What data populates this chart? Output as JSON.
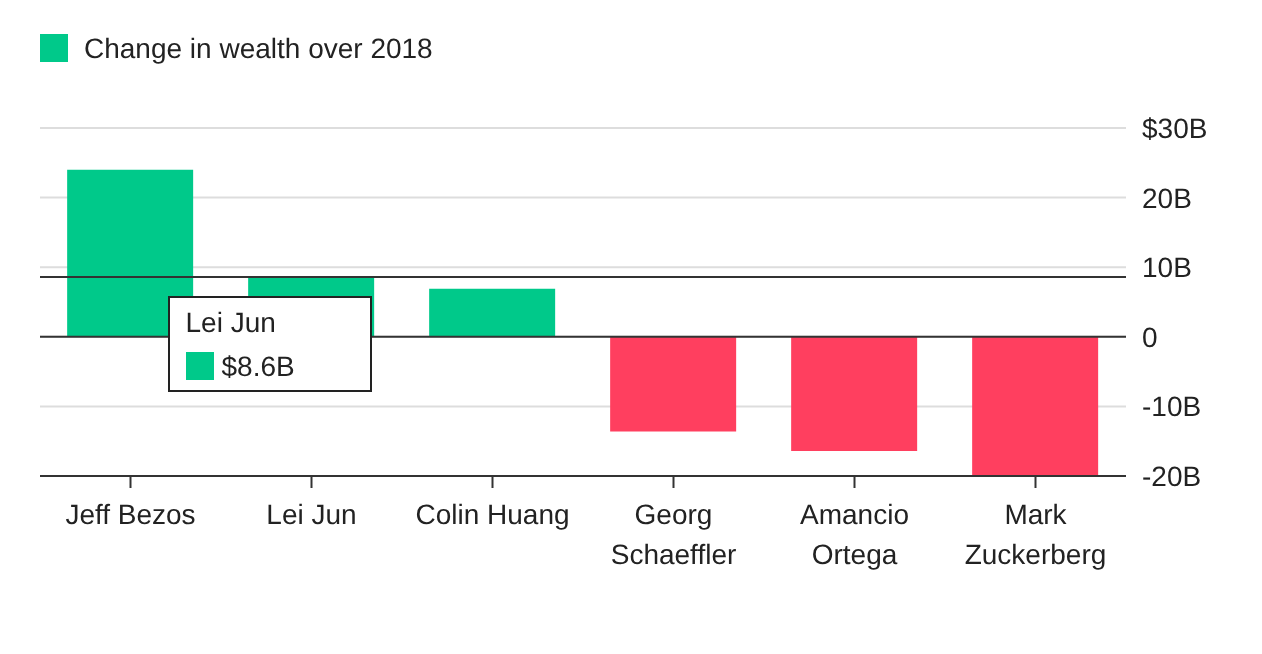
{
  "chart_data": {
    "type": "bar",
    "categories": [
      "Jeff Bezos",
      "Lei Jun",
      "Colin Huang",
      "Georg Schaeffler",
      "Amancio Ortega",
      "Mark Zuckerberg"
    ],
    "series": [
      {
        "name": "Change in wealth over 2018",
        "color": "#00c98a",
        "colors": [
          "#00c98a",
          "#00c98a",
          "#00c98a",
          "#ff3f5f",
          "#ff3f5f",
          "#ff3f5f"
        ],
        "values": [
          24.0,
          8.6,
          6.9,
          -13.6,
          -16.4,
          -19.9
        ]
      }
    ],
    "ylim": [
      -20,
      30
    ],
    "yticks": [
      {
        "value": 30,
        "label": "$30B"
      },
      {
        "value": 20,
        "label": "20B"
      },
      {
        "value": 10,
        "label": "10B"
      },
      0,
      {
        "value": -10,
        "label": "-10B"
      },
      {
        "value": -20,
        "label": "-20B"
      }
    ],
    "grid": "y",
    "legend": "top left",
    "ref_lines": [
      {
        "axis": "y",
        "value": 8.6,
        "color": "#333333"
      }
    ],
    "annotations": [
      {
        "text": "Lei Jun",
        "x": "Lei Jun",
        "y": 8.6
      },
      {
        "text": "$8.6B",
        "x": "Lei Jun",
        "y": 8.6
      }
    ]
  }
}
